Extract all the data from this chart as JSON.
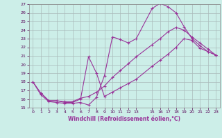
{
  "xlabel": "Windchill (Refroidissement éolien,°C)",
  "xlim": [
    -0.5,
    23.5
  ],
  "ylim": [
    15,
    27
  ],
  "yticks": [
    15,
    16,
    17,
    18,
    19,
    20,
    21,
    22,
    23,
    24,
    25,
    26,
    27
  ],
  "xticks": [
    0,
    1,
    2,
    3,
    4,
    5,
    6,
    7,
    8,
    9,
    10,
    11,
    12,
    13,
    15,
    16,
    17,
    18,
    19,
    20,
    21,
    22,
    23
  ],
  "background_color": "#cceee8",
  "grid_color": "#aabbbb",
  "line_color": "#993399",
  "line1_x": [
    0,
    1,
    2,
    3,
    4,
    5,
    6,
    7,
    8,
    9,
    10,
    11,
    12,
    13,
    15,
    16,
    17,
    18,
    19,
    20,
    21,
    22,
    23
  ],
  "line1_y": [
    18.0,
    16.5,
    15.7,
    15.6,
    15.5,
    15.5,
    15.6,
    15.3,
    16.2,
    18.7,
    23.2,
    22.9,
    22.5,
    23.0,
    26.5,
    27.1,
    26.7,
    26.0,
    24.4,
    23.0,
    22.2,
    21.5,
    21.1
  ],
  "line2_x": [
    0,
    1,
    2,
    3,
    4,
    5,
    6,
    7,
    8,
    9,
    10,
    11,
    12,
    13,
    15,
    16,
    17,
    18,
    19,
    20,
    21,
    22,
    23
  ],
  "line2_y": [
    18.0,
    16.7,
    15.8,
    15.8,
    15.6,
    15.6,
    16.0,
    20.9,
    19.0,
    16.3,
    16.8,
    17.3,
    17.8,
    18.3,
    19.8,
    20.5,
    21.2,
    22.0,
    23.0,
    22.8,
    21.9,
    21.5,
    21.1
  ],
  "line3_x": [
    1,
    2,
    3,
    4,
    5,
    6,
    7,
    8,
    9,
    10,
    11,
    12,
    13,
    15,
    16,
    17,
    18,
    19,
    20,
    21,
    22,
    23
  ],
  "line3_y": [
    16.7,
    15.8,
    15.8,
    15.7,
    15.7,
    16.1,
    16.3,
    16.8,
    17.5,
    18.5,
    19.3,
    20.1,
    20.9,
    22.3,
    23.0,
    23.8,
    24.3,
    24.0,
    23.2,
    22.5,
    21.8,
    21.1
  ]
}
